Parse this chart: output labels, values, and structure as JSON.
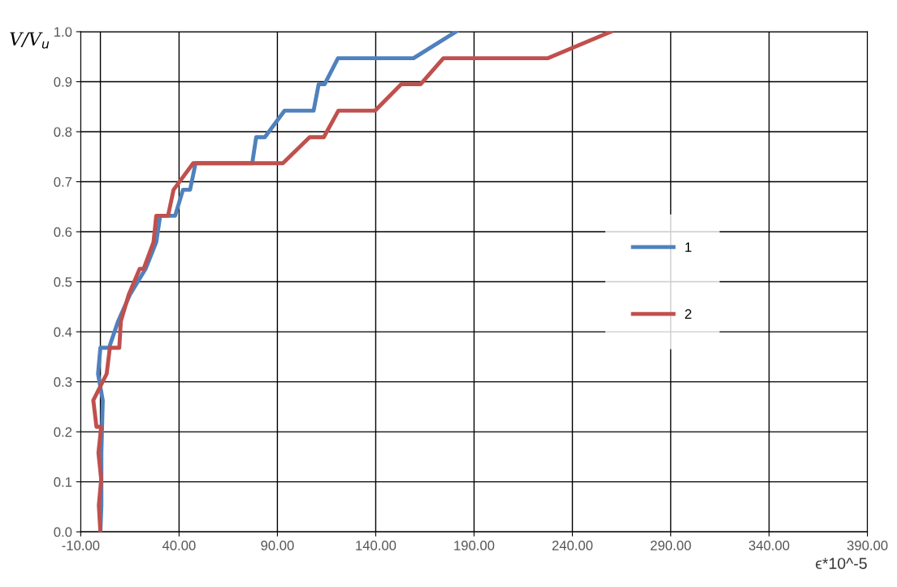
{
  "chart_data": {
    "type": "line",
    "xlabel": "ϵ*10^-5",
    "ylabel": "V/V$_{u}$",
    "series": [
      {
        "name": "1",
        "color": "#4f81bd",
        "x": [
          0,
          0.5,
          0.5,
          1.2,
          -1.2,
          0,
          4.4,
          9,
          15,
          23,
          28.4,
          30.4,
          38,
          42,
          45.6,
          48.4,
          77.2,
          79.2,
          83.6,
          93.6,
          108.4,
          111,
          114,
          120.8,
          159.2,
          180.8
        ],
        "values": [
          0,
          0.053,
          0.158,
          0.263,
          0.316,
          0.368,
          0.368,
          0.421,
          0.474,
          0.526,
          0.579,
          0.632,
          0.632,
          0.684,
          0.684,
          0.737,
          0.737,
          0.789,
          0.789,
          0.842,
          0.842,
          0.895,
          0.895,
          0.947,
          0.947,
          1.0
        ]
      },
      {
        "name": "2",
        "color": "#c0504d",
        "x": [
          0,
          -0.8,
          0.4,
          -1,
          0.4,
          -2,
          -3.6,
          3.2,
          4.8,
          9.6,
          10.4,
          14.4,
          20,
          22,
          27,
          28.4,
          34.4,
          37.2,
          47.2,
          92.8,
          106.4,
          113.6,
          121,
          139.6,
          153,
          162.8,
          174.4,
          227.6,
          259.6
        ],
        "values": [
          0,
          0.053,
          0.105,
          0.158,
          0.21,
          0.21,
          0.263,
          0.316,
          0.368,
          0.368,
          0.421,
          0.474,
          0.526,
          0.526,
          0.579,
          0.632,
          0.632,
          0.684,
          0.737,
          0.737,
          0.789,
          0.789,
          0.842,
          0.842,
          0.895,
          0.895,
          0.947,
          0.947,
          1.0
        ]
      }
    ],
    "xlim": [
      -10,
      390
    ],
    "xticks": [
      {
        "value": -10,
        "label": "-10.00"
      },
      {
        "value": 40,
        "label": "40.00"
      },
      {
        "value": 90,
        "label": "90.00"
      },
      {
        "value": 140,
        "label": "140.00"
      },
      {
        "value": 190,
        "label": "190.00"
      },
      {
        "value": 240,
        "label": "240.00"
      },
      {
        "value": 290,
        "label": "290.00"
      },
      {
        "value": 340,
        "label": "340.00"
      },
      {
        "value": 390,
        "label": "390.00"
      }
    ],
    "ylim": [
      0,
      1.0
    ],
    "yticks": [
      {
        "value": 0,
        "label": "0.0"
      },
      {
        "value": 0.1,
        "label": "0.1"
      },
      {
        "value": 0.2,
        "label": "0.2"
      },
      {
        "value": 0.3,
        "label": "0.3"
      },
      {
        "value": 0.4,
        "label": "0.4"
      },
      {
        "value": 0.5,
        "label": "0.5"
      },
      {
        "value": 0.6,
        "label": "0.6"
      },
      {
        "value": 0.7,
        "label": "0.7"
      },
      {
        "value": 0.8,
        "label": "0.8"
      },
      {
        "value": 0.9,
        "label": "0.9"
      },
      {
        "value": 1.0,
        "label": "1.0"
      }
    ],
    "ref_lines": [
      {
        "axis": "x",
        "value": 0,
        "color": "#000000"
      }
    ],
    "grid": true,
    "legend": "right",
    "marker": "none",
    "line_style": "solid"
  }
}
